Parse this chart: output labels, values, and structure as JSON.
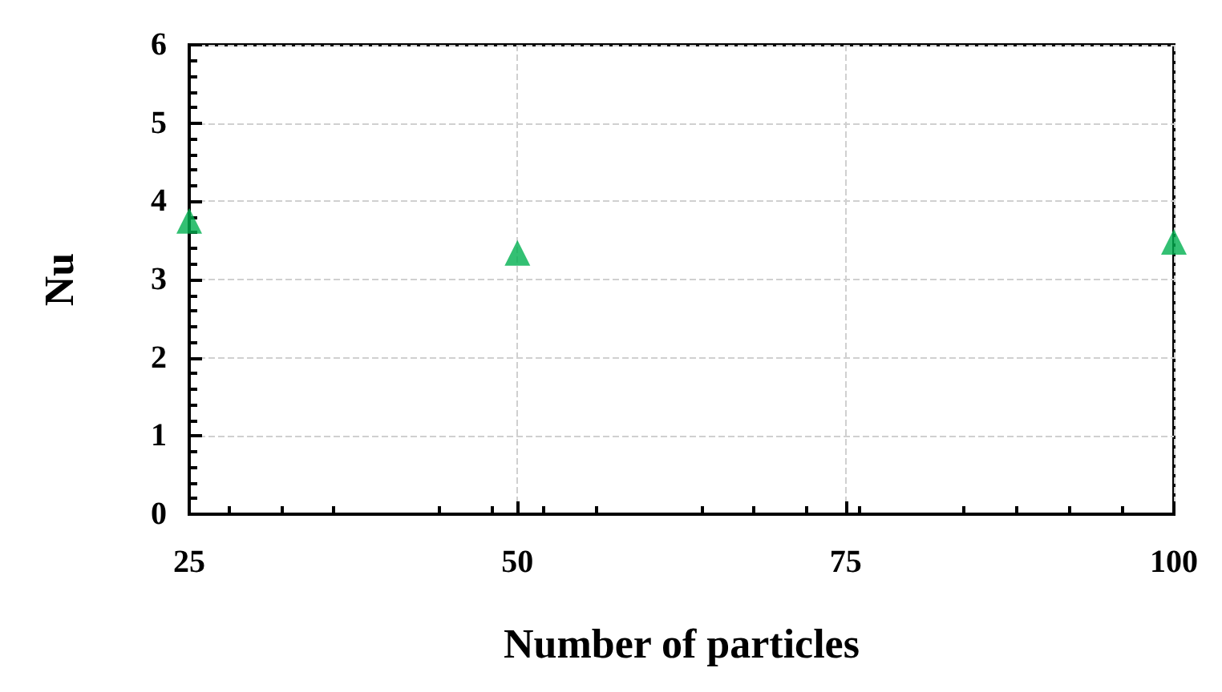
{
  "chart_data": {
    "type": "scatter",
    "xlabel": "Number of particles",
    "ylabel": "Nu",
    "x": [
      25,
      50,
      100
    ],
    "series": [
      {
        "color": "#00b050",
        "values": [
          3.75,
          3.34,
          3.48
        ]
      }
    ],
    "xlim": [
      25,
      100
    ],
    "xticks": [
      25,
      50,
      75,
      100
    ],
    "ylim": [
      0,
      6
    ],
    "yticks": [
      0,
      1,
      2,
      3,
      4,
      5,
      6
    ],
    "grid": true,
    "marker": "triangle"
  }
}
